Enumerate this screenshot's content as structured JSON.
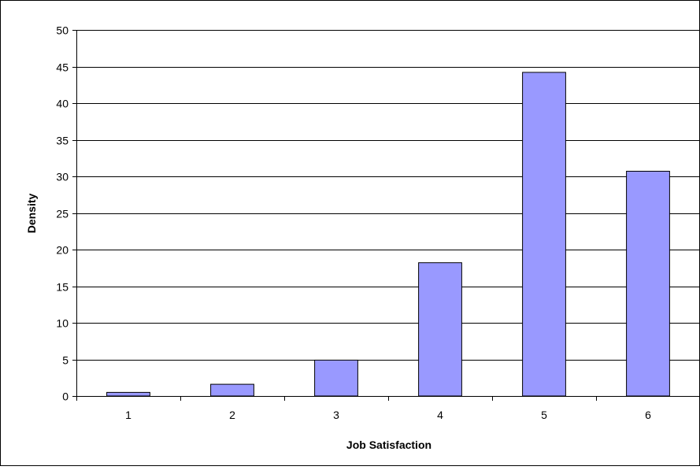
{
  "chart_data": {
    "type": "bar",
    "categories": [
      "1",
      "2",
      "3",
      "4",
      "5",
      "6"
    ],
    "series": [
      {
        "values": [
          0.5,
          1.6,
          4.9,
          18.2,
          44.2,
          30.7
        ]
      }
    ],
    "xlabel": "Job Satisfaction",
    "ylabel": "Density",
    "ylim": [
      0,
      50
    ],
    "yticks": [
      0,
      5,
      10,
      15,
      20,
      25,
      30,
      35,
      40,
      45,
      50
    ],
    "grid": "horizontal",
    "legend": "none",
    "colors": {
      "bar_fill": "#9999FF",
      "bar_stroke": "#000000",
      "gridline": "#000000",
      "frame": "#000000"
    }
  }
}
